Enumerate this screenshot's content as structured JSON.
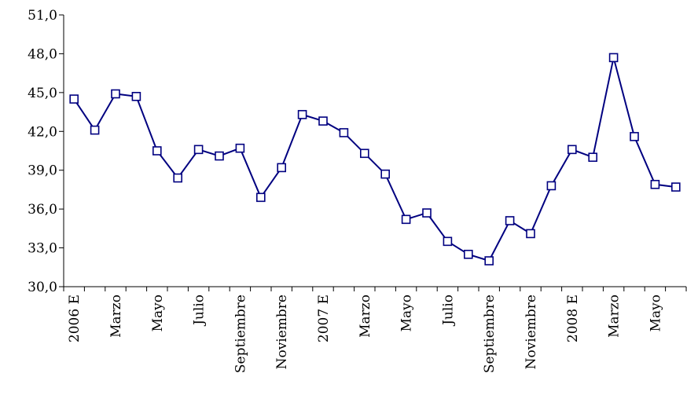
{
  "chart_data": {
    "type": "line",
    "title": "",
    "xlabel": "",
    "ylabel": "",
    "ylim": [
      30,
      51
    ],
    "yticks": [
      "30,0",
      "33,0",
      "36,0",
      "39,0",
      "42,0",
      "45,0",
      "48,0",
      "51,0"
    ],
    "categories": [
      "2006 E",
      "",
      "Marzo",
      "",
      "Mayo",
      "",
      "Julio",
      "",
      "Septiembre",
      "",
      "Noviembre",
      "",
      "2007 E",
      "",
      "Marzo",
      "",
      "Mayo",
      "",
      "Julio",
      "",
      "Septiembre",
      "",
      "Noviembre",
      "",
      "2008 E",
      "",
      "Marzo",
      "",
      "Mayo",
      ""
    ],
    "series": [
      {
        "color": "#000080",
        "marker": "square",
        "values": [
          44.5,
          42.1,
          44.9,
          44.7,
          40.5,
          38.4,
          40.6,
          40.1,
          40.7,
          36.9,
          39.2,
          43.3,
          42.8,
          41.9,
          40.3,
          38.7,
          35.2,
          35.7,
          33.5,
          32.5,
          32.0,
          35.1,
          34.1,
          37.8,
          40.6,
          40.0,
          47.7,
          41.6,
          37.9,
          37.7
        ]
      }
    ],
    "grid": false,
    "legend": "none"
  }
}
